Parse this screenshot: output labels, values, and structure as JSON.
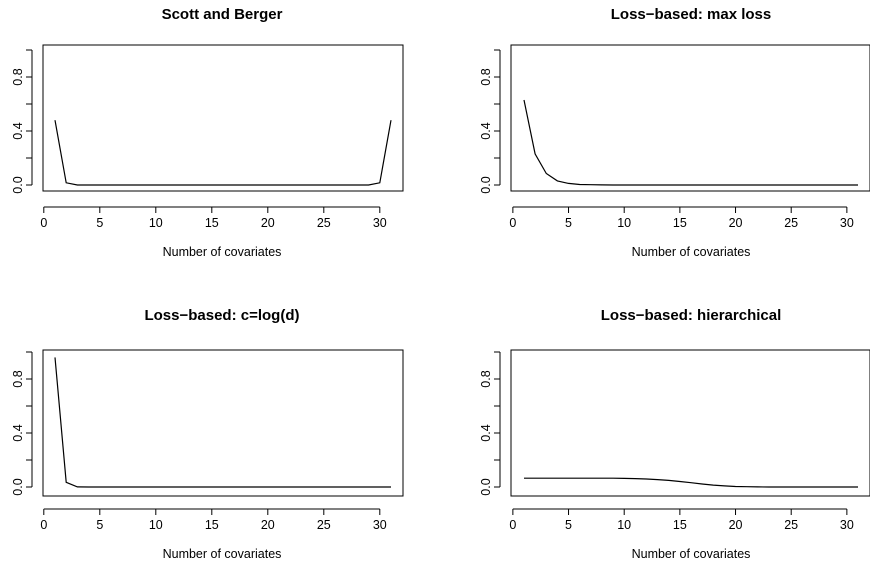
{
  "chart_data": [
    {
      "type": "line",
      "title": "Scott and Berger",
      "xlabel": "Number of covariates",
      "ylabel": "",
      "xlim": [
        1,
        31
      ],
      "ylim": [
        0,
        1
      ],
      "x_ticks": [
        "0",
        "5",
        "10",
        "15",
        "20",
        "25",
        "30"
      ],
      "y_ticks": [
        "0.0",
        "0.4",
        "0.8"
      ],
      "series": [
        {
          "x": [
            1,
            2,
            3,
            4,
            5,
            6,
            7,
            8,
            9,
            10,
            11,
            12,
            13,
            14,
            15,
            16,
            17,
            18,
            19,
            20,
            21,
            22,
            23,
            24,
            25,
            26,
            27,
            28,
            29,
            30,
            31
          ],
          "values": [
            0.48,
            0.016,
            0.0,
            0.0,
            0.0,
            0.0,
            0.0,
            0.0,
            0.0,
            0.0,
            0.0,
            0.0,
            0.0,
            0.0,
            0.0,
            0.0,
            0.0,
            0.0,
            0.0,
            0.0,
            0.0,
            0.0,
            0.0,
            0.0,
            0.0,
            0.0,
            0.0,
            0.0,
            0.0,
            0.016,
            0.48
          ]
        }
      ]
    },
    {
      "type": "line",
      "title": "Loss−based: max loss",
      "xlabel": "Number of covariates",
      "ylabel": "",
      "xlim": [
        1,
        31
      ],
      "ylim": [
        0,
        1
      ],
      "x_ticks": [
        "0",
        "5",
        "10",
        "15",
        "20",
        "25",
        "30"
      ],
      "y_ticks": [
        "0.0",
        "0.4",
        "0.8"
      ],
      "series": [
        {
          "x": [
            1,
            2,
            3,
            4,
            5,
            6,
            7,
            8,
            9,
            10,
            11,
            12,
            13,
            14,
            15,
            16,
            17,
            18,
            19,
            20,
            21,
            22,
            23,
            24,
            25,
            26,
            27,
            28,
            29,
            30,
            31
          ],
          "values": [
            0.63,
            0.23,
            0.085,
            0.03,
            0.012,
            0.004,
            0.002,
            0.001,
            0.0,
            0.0,
            0.0,
            0.0,
            0.0,
            0.0,
            0.0,
            0.0,
            0.0,
            0.0,
            0.0,
            0.0,
            0.0,
            0.0,
            0.0,
            0.0,
            0.0,
            0.0,
            0.0,
            0.0,
            0.0,
            0.0,
            0.0
          ]
        }
      ]
    },
    {
      "type": "line",
      "title": "Loss−based: c=log(d)",
      "xlabel": "Number of covariates",
      "ylabel": "",
      "xlim": [
        1,
        31
      ],
      "ylim": [
        0,
        1
      ],
      "x_ticks": [
        "0",
        "5",
        "10",
        "15",
        "20",
        "25",
        "30"
      ],
      "y_ticks": [
        "0.0",
        "0.4",
        "0.8"
      ],
      "series": [
        {
          "x": [
            1,
            2,
            3,
            4,
            5,
            6,
            7,
            8,
            9,
            10,
            11,
            12,
            13,
            14,
            15,
            16,
            17,
            18,
            19,
            20,
            21,
            22,
            23,
            24,
            25,
            26,
            27,
            28,
            29,
            30,
            31
          ],
          "values": [
            0.96,
            0.035,
            0.001,
            0.0,
            0.0,
            0.0,
            0.0,
            0.0,
            0.0,
            0.0,
            0.0,
            0.0,
            0.0,
            0.0,
            0.0,
            0.0,
            0.0,
            0.0,
            0.0,
            0.0,
            0.0,
            0.0,
            0.0,
            0.0,
            0.0,
            0.0,
            0.0,
            0.0,
            0.0,
            0.0,
            0.0
          ]
        }
      ]
    },
    {
      "type": "line",
      "title": "Loss−based: hierarchical",
      "xlabel": "Number of covariates",
      "ylabel": "",
      "xlim": [
        1,
        31
      ],
      "ylim": [
        0,
        1
      ],
      "x_ticks": [
        "0",
        "5",
        "10",
        "15",
        "20",
        "25",
        "30"
      ],
      "y_ticks": [
        "0.0",
        "0.4",
        "0.8"
      ],
      "series": [
        {
          "x": [
            1,
            2,
            3,
            4,
            5,
            6,
            7,
            8,
            9,
            10,
            11,
            12,
            13,
            14,
            15,
            16,
            17,
            18,
            19,
            20,
            21,
            22,
            23,
            24,
            25,
            26,
            27,
            28,
            29,
            30,
            31
          ],
          "values": [
            0.065,
            0.065,
            0.065,
            0.065,
            0.065,
            0.065,
            0.065,
            0.065,
            0.065,
            0.064,
            0.062,
            0.059,
            0.055,
            0.049,
            0.041,
            0.032,
            0.022,
            0.014,
            0.008,
            0.004,
            0.002,
            0.001,
            0.0,
            0.0,
            0.0,
            0.0,
            0.0,
            0.0,
            0.0,
            0.0,
            0.0
          ]
        }
      ]
    }
  ]
}
